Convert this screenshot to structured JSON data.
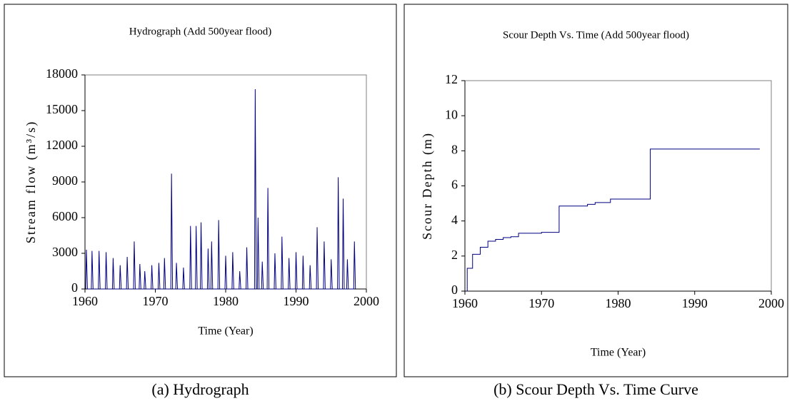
{
  "chart_data": [
    {
      "type": "line",
      "title": "Hydrograph (Add 500year flood)",
      "caption": "(a) Hydrograph",
      "xlabel": "Time (Year)",
      "ylabel": "Stream flow (m³/s)",
      "color": "#000080",
      "step": false,
      "xlim": [
        1960,
        2000
      ],
      "xticks": [
        1960,
        1970,
        1980,
        1990,
        2000
      ],
      "ylim": [
        0,
        18000
      ],
      "yticks": [
        0,
        3000,
        6000,
        9000,
        12000,
        15000,
        18000
      ],
      "grid": false,
      "x": [
        1960.1,
        1960.2,
        1960.35,
        1960.9,
        1961,
        1961.15,
        1961.9,
        1962,
        1962.15,
        1962.9,
        1963,
        1963.15,
        1963.9,
        1964,
        1964.15,
        1964.9,
        1965,
        1965.15,
        1965.9,
        1966,
        1966.15,
        1966.9,
        1967,
        1967.15,
        1967.7,
        1967.8,
        1967.95,
        1968.4,
        1968.5,
        1968.65,
        1969.4,
        1969.5,
        1969.65,
        1970.4,
        1970.5,
        1970.65,
        1971.2,
        1971.3,
        1971.45,
        1972.2,
        1972.3,
        1972.45,
        1972.9,
        1973,
        1973.15,
        1973.9,
        1974,
        1974.15,
        1974.9,
        1975,
        1975.15,
        1975.7,
        1975.8,
        1975.95,
        1976.4,
        1976.5,
        1976.65,
        1977.4,
        1977.5,
        1977.65,
        1977.9,
        1978,
        1978.15,
        1978.9,
        1979,
        1979.15,
        1979.9,
        1980,
        1980.15,
        1980.9,
        1981,
        1981.15,
        1981.9,
        1982,
        1982.15,
        1982.9,
        1983,
        1983.15,
        1984.1,
        1984.2,
        1984.35,
        1984.5,
        1984.6,
        1984.75,
        1985.1,
        1985.2,
        1985.35,
        1985.9,
        1986,
        1986.15,
        1986.9,
        1987,
        1987.15,
        1987.9,
        1988,
        1988.15,
        1988.9,
        1989,
        1989.15,
        1989.9,
        1990,
        1990.15,
        1990.9,
        1991,
        1991.15,
        1991.9,
        1992,
        1992.15,
        1992.9,
        1993,
        1993.15,
        1993.9,
        1994,
        1994.15,
        1994.9,
        1995,
        1995.15,
        1995.9,
        1996,
        1996.15,
        1996.6,
        1996.7,
        1996.85,
        1997.2,
        1997.3,
        1997.45,
        1998.2,
        1998.3,
        1998.45
      ],
      "values": [
        0,
        3300,
        0,
        0,
        3200,
        0,
        0,
        3200,
        0,
        0,
        3100,
        0,
        0,
        2600,
        0,
        0,
        2000,
        0,
        0,
        2700,
        0,
        0,
        4000,
        0,
        0,
        2100,
        0,
        0,
        1500,
        0,
        0,
        2000,
        0,
        0,
        2200,
        0,
        0,
        2600,
        0,
        0,
        9700,
        0,
        0,
        2200,
        0,
        0,
        1800,
        0,
        0,
        5300,
        0,
        0,
        5300,
        0,
        0,
        5600,
        0,
        0,
        3400,
        0,
        0,
        4000,
        0,
        0,
        5800,
        0,
        0,
        2800,
        0,
        0,
        3100,
        0,
        0,
        1500,
        0,
        0,
        3500,
        0,
        0,
        16800,
        0,
        0,
        6000,
        0,
        0,
        2300,
        0,
        0,
        8500,
        0,
        0,
        3000,
        0,
        0,
        4400,
        0,
        0,
        2600,
        0,
        0,
        3100,
        0,
        0,
        2800,
        0,
        0,
        2000,
        0,
        0,
        5200,
        0,
        0,
        4000,
        0,
        0,
        2500,
        0,
        0,
        9400,
        0,
        0,
        7600,
        0,
        0,
        2500,
        0,
        0,
        4000,
        0
      ]
    },
    {
      "type": "line",
      "title": "Scour Depth Vs. Time (Add 500year flood)",
      "caption": "(b) Scour Depth Vs. Time Curve",
      "xlabel": "Time (Year)",
      "ylabel": "Scour Depth (m)",
      "color": "#000080",
      "step": true,
      "xlim": [
        1960,
        2000
      ],
      "xticks": [
        1960,
        1970,
        1980,
        1990,
        2000
      ],
      "ylim": [
        0,
        12
      ],
      "yticks": [
        0,
        2,
        4,
        6,
        8,
        10,
        12
      ],
      "grid": false,
      "x": [
        1960.2,
        1960.3,
        1961,
        1962,
        1963,
        1964,
        1965,
        1966,
        1967,
        1970,
        1972.3,
        1976,
        1977,
        1979,
        1984.2,
        1998.5
      ],
      "values": [
        0,
        1.3,
        2.1,
        2.5,
        2.85,
        2.95,
        3.05,
        3.1,
        3.3,
        3.35,
        4.85,
        4.95,
        5.05,
        5.25,
        8.1,
        8.1
      ]
    }
  ]
}
